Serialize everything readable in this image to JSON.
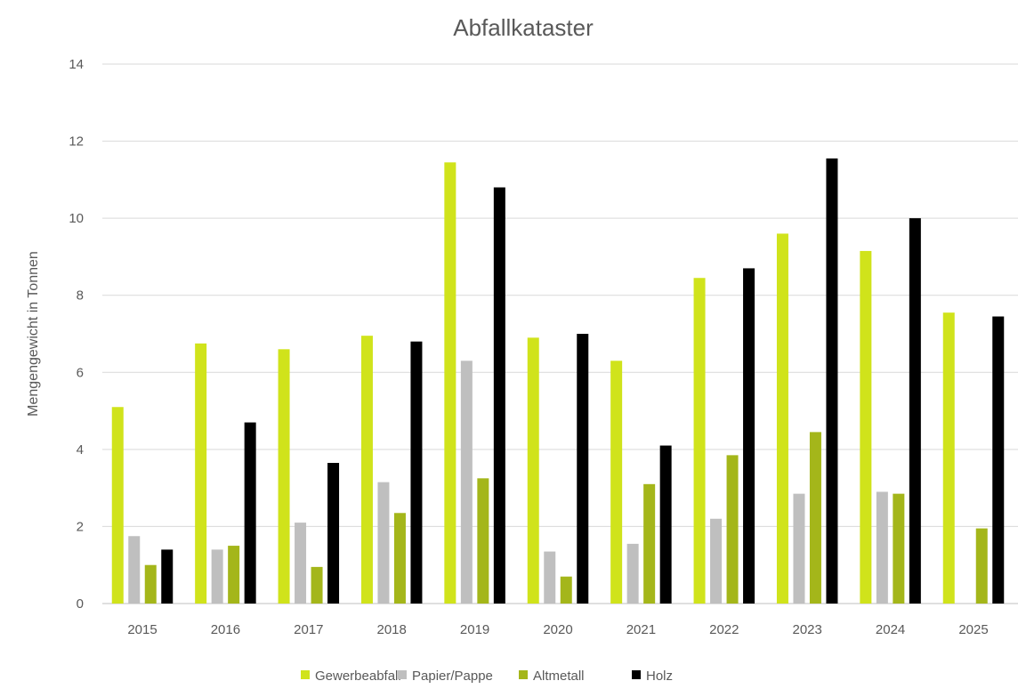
{
  "chart_data": {
    "type": "bar",
    "title": "Abfallkataster",
    "xlabel": "",
    "ylabel": "Mengengewicht in Tonnen",
    "ylim": [
      0,
      14
    ],
    "yticks": [
      0,
      2,
      4,
      6,
      8,
      10,
      12,
      14
    ],
    "grid": true,
    "legend_position": "bottom",
    "categories": [
      "2015",
      "2016",
      "2017",
      "2018",
      "2019",
      "2020",
      "2021",
      "2022",
      "2023",
      "2024",
      "2025"
    ],
    "series": [
      {
        "name": "Gewerbeabfall",
        "color": "#d0e31b",
        "values": [
          5.1,
          6.75,
          6.6,
          6.95,
          11.45,
          6.9,
          6.3,
          8.45,
          9.6,
          9.15,
          7.55
        ]
      },
      {
        "name": "Papier/Pappe",
        "color": "#bfbfbf",
        "values": [
          1.75,
          1.4,
          2.1,
          3.15,
          6.3,
          1.35,
          1.55,
          2.2,
          2.85,
          2.9,
          null
        ]
      },
      {
        "name": "Altmetall",
        "color": "#a4b61a",
        "values": [
          1.0,
          1.5,
          0.95,
          2.35,
          3.25,
          0.7,
          3.1,
          3.85,
          4.45,
          2.85,
          1.95
        ]
      },
      {
        "name": "Holz",
        "color": "#000000",
        "values": [
          1.4,
          4.7,
          3.65,
          6.8,
          10.8,
          7.0,
          4.1,
          8.7,
          11.55,
          10.0,
          7.45
        ]
      }
    ]
  }
}
